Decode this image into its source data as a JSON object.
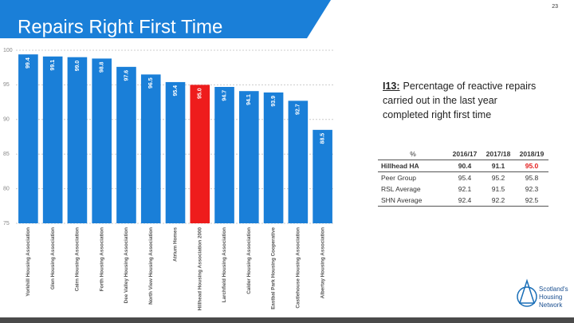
{
  "page_number": "23",
  "title": "Repairs Right First Time",
  "chart_data": {
    "type": "bar",
    "categories": [
      "Yorkhill Housing Association",
      "Glen Housing Association",
      "Cairn Housing Association",
      "Forth Housing Association",
      "Dee Valley Housing Association",
      "North View Housing Association",
      "Atrium Homes",
      "Hillhead Housing Association 2000",
      "Larchfield Housing Association",
      "Calder Housing Association",
      "Eastbal Park Housing Cooperative",
      "Castlehouse Housing Association",
      "Albertay Housing Association"
    ],
    "values": [
      99.4,
      99.1,
      99.0,
      98.8,
      97.6,
      96.5,
      95.4,
      95.0,
      94.7,
      94.1,
      93.9,
      92.7,
      88.5
    ],
    "value_labels": [
      "99.4",
      "99.1",
      "99.0",
      "98.8",
      "97.6",
      "96.5",
      "95.4",
      "95.0",
      "94.7",
      "94.1",
      "93.9",
      "92.7",
      "88.5"
    ],
    "colors": [
      "#1a7fd8",
      "#1a7fd8",
      "#1a7fd8",
      "#1a7fd8",
      "#1a7fd8",
      "#1a7fd8",
      "#1a7fd8",
      "#ee1c1c",
      "#1a7fd8",
      "#1a7fd8",
      "#1a7fd8",
      "#1a7fd8",
      "#1a7fd8"
    ],
    "ylim": [
      75,
      100
    ],
    "yticks": [
      75,
      80,
      85,
      90,
      95,
      100
    ],
    "grid": true
  },
  "description": {
    "indicator": "I13:",
    "text": "Percentage of reactive repairs carried out in the last year completed right first time"
  },
  "table": {
    "header": [
      "%",
      "2016/17",
      "2017/18",
      "2018/19"
    ],
    "rows": [
      [
        "Hillhead HA",
        "90.4",
        "91.1",
        "95.0"
      ],
      [
        "Peer Group",
        "95.4",
        "95.2",
        "95.8"
      ],
      [
        "RSL Average",
        "92.1",
        "91.5",
        "92.3"
      ],
      [
        "SHN Average",
        "92.4",
        "92.2",
        "92.5"
      ]
    ]
  },
  "logo": {
    "lines": [
      "Scotland's",
      "Housing",
      "Network"
    ]
  }
}
